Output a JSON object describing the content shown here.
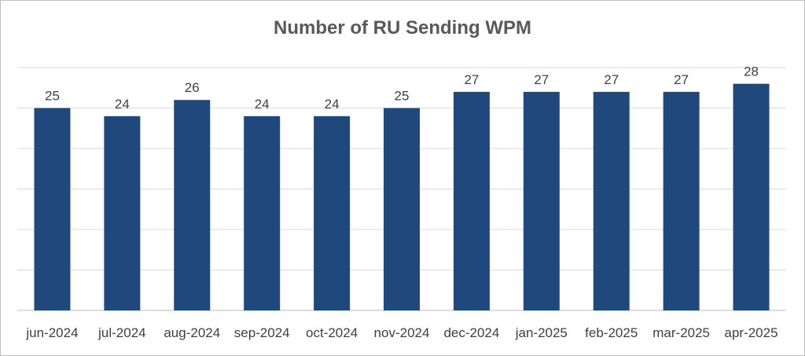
{
  "chart_data": {
    "type": "bar",
    "title": "Number of RU Sending WPM",
    "xlabel": "",
    "ylabel": "",
    "categories": [
      "jun-2024",
      "jul-2024",
      "aug-2024",
      "sep-2024",
      "oct-2024",
      "nov-2024",
      "dec-2024",
      "jan-2025",
      "feb-2025",
      "mar-2025",
      "apr-2025"
    ],
    "values": [
      25,
      24,
      26,
      24,
      24,
      25,
      27,
      27,
      27,
      27,
      28
    ],
    "ylim": [
      0,
      30
    ],
    "grid": true,
    "legend": "none",
    "bar_color": "#1f497d",
    "grid_color": "#d9d9d9"
  }
}
